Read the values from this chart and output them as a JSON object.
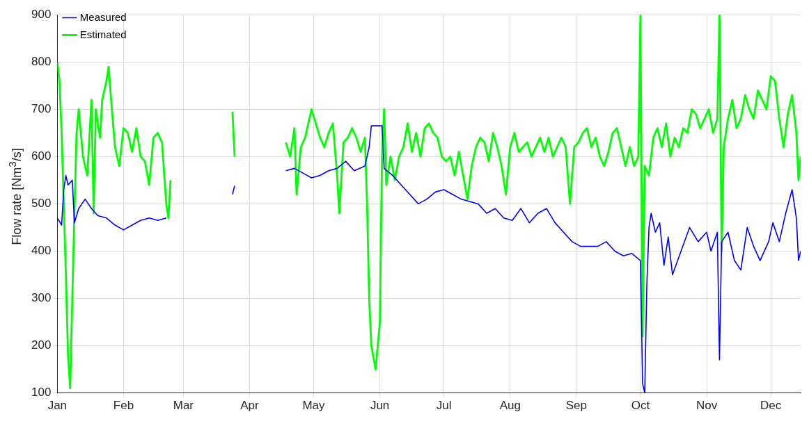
{
  "chart_data": {
    "type": "line",
    "ylabel": "Flow rate [Nm$^{3}$/s]",
    "ylim": [
      100,
      900
    ],
    "yticks": [
      100,
      200,
      300,
      400,
      500,
      600,
      700,
      800,
      900
    ],
    "xlim": [
      "--01-01",
      "--12-15"
    ],
    "xticks": [
      {
        "value": "--01-01",
        "label": "Jan"
      },
      {
        "value": "--02-01",
        "label": "Feb"
      },
      {
        "value": "--03-01",
        "label": "Mar"
      },
      {
        "value": "--04-01",
        "label": "Apr"
      },
      {
        "value": "--05-01",
        "label": "May"
      },
      {
        "value": "--06-01",
        "label": "Jun"
      },
      {
        "value": "--07-01",
        "label": "Jul"
      },
      {
        "value": "--08-01",
        "label": "Aug"
      },
      {
        "value": "--09-01",
        "label": "Sep"
      },
      {
        "value": "--10-01",
        "label": "Oct"
      },
      {
        "value": "--11-01",
        "label": "Nov"
      },
      {
        "value": "--12-01",
        "label": "Dec"
      }
    ],
    "grid": true,
    "legend": "top left",
    "line_style": "solid",
    "series": [
      {
        "name": "Measured",
        "color": "#0000ff",
        "x": [
          "--01-01",
          "--01-03",
          "--01-04",
          "--01-05",
          "--01-06",
          "--01-08",
          "--01-09",
          "--01-11",
          "--01-14",
          "--01-17",
          "--01-20",
          "--01-24",
          "--01-28",
          "--02-01",
          "--02-05",
          "--02-09",
          "--02-13",
          "--02-17",
          "--02-21",
          "--03-01",
          "--03-24",
          "--03-25",
          "--04-01",
          "--04-18",
          "--04-22",
          "--04-26",
          "--04-30",
          "--05-04",
          "--05-08",
          "--05-12",
          "--05-16",
          "--05-20",
          "--05-25",
          "--05-27",
          "--05-28",
          "--06-02",
          "--06-03",
          "--06-07",
          "--06-11",
          "--06-15",
          "--06-19",
          "--06-23",
          "--06-27",
          "--07-01",
          "--07-05",
          "--07-09",
          "--07-13",
          "--07-17",
          "--07-21",
          "--07-25",
          "--07-29",
          "--08-02",
          "--08-06",
          "--08-10",
          "--08-14",
          "--08-18",
          "--08-22",
          "--08-26",
          "--08-30",
          "--09-03",
          "--09-07",
          "--09-11",
          "--09-15",
          "--09-19",
          "--09-23",
          "--09-27",
          "--10-01",
          "--10-02",
          "--10-03",
          "--10-04",
          "--10-05",
          "--10-06",
          "--10-08",
          "--10-10",
          "--10-12",
          "--10-14",
          "--10-16",
          "--10-20",
          "--10-24",
          "--10-28",
          "--11-01",
          "--11-03",
          "--11-06",
          "--11-07",
          "--11-08",
          "--11-11",
          "--11-14",
          "--11-17",
          "--11-20",
          "--11-23",
          "--11-26",
          "--11-30",
          "--12-02",
          "--12-05",
          "--12-08",
          "--12-11",
          "--12-13",
          "--12-14",
          "--12-15"
        ],
        "values": [
          470,
          455,
          530,
          560,
          540,
          550,
          460,
          490,
          510,
          490,
          475,
          470,
          455,
          445,
          455,
          465,
          470,
          465,
          470,
          null,
          520,
          538,
          null,
          570,
          575,
          565,
          555,
          560,
          570,
          575,
          590,
          570,
          580,
          620,
          665,
          665,
          575,
          560,
          540,
          520,
          500,
          510,
          525,
          530,
          520,
          510,
          505,
          500,
          480,
          490,
          470,
          465,
          490,
          460,
          480,
          490,
          460,
          440,
          420,
          410,
          410,
          410,
          420,
          400,
          390,
          395,
          380,
          120,
          100,
          330,
          450,
          480,
          440,
          460,
          370,
          430,
          350,
          400,
          450,
          420,
          440,
          400,
          440,
          170,
          420,
          440,
          380,
          360,
          450,
          410,
          380,
          420,
          460,
          420,
          480,
          530,
          470,
          380,
          400
        ]
      },
      {
        "name": "Estimated",
        "color": "#00ff00",
        "x": [
          "--01-01",
          "--01-02",
          "--01-03",
          "--01-04",
          "--01-05",
          "--01-06",
          "--01-07",
          "--01-08",
          "--01-09",
          "--01-10",
          "--01-11",
          "--01-13",
          "--01-15",
          "--01-17",
          "--01-18",
          "--01-19",
          "--01-21",
          "--01-22",
          "--01-24",
          "--01-25",
          "--01-26",
          "--01-28",
          "--01-30",
          "--02-01",
          "--02-03",
          "--02-05",
          "--02-07",
          "--02-09",
          "--02-11",
          "--02-13",
          "--02-15",
          "--02-17",
          "--02-19",
          "--02-21",
          "--02-22",
          "--02-23",
          "--03-01",
          "--03-24",
          "--03-25",
          "--04-01",
          "--04-18",
          "--04-20",
          "--04-22",
          "--04-23",
          "--04-25",
          "--04-27",
          "--04-30",
          "--05-02",
          "--05-04",
          "--05-06",
          "--05-08",
          "--05-10",
          "--05-12",
          "--05-13",
          "--05-15",
          "--05-17",
          "--05-19",
          "--05-21",
          "--05-23",
          "--05-25",
          "--05-26",
          "--05-27",
          "--05-28",
          "--05-30",
          "--06-01",
          "--06-02",
          "--06-03",
          "--06-04",
          "--06-06",
          "--06-08",
          "--06-10",
          "--06-12",
          "--06-14",
          "--06-16",
          "--06-18",
          "--06-20",
          "--06-22",
          "--06-24",
          "--06-26",
          "--06-28",
          "--06-30",
          "--07-02",
          "--07-04",
          "--07-06",
          "--07-08",
          "--07-10",
          "--07-12",
          "--07-14",
          "--07-16",
          "--07-18",
          "--07-20",
          "--07-22",
          "--07-24",
          "--07-26",
          "--07-28",
          "--07-30",
          "--08-01",
          "--08-03",
          "--08-05",
          "--08-07",
          "--08-09",
          "--08-11",
          "--08-13",
          "--08-15",
          "--08-17",
          "--08-19",
          "--08-21",
          "--08-23",
          "--08-25",
          "--08-27",
          "--08-29",
          "--08-31",
          "--09-02",
          "--09-04",
          "--09-06",
          "--09-08",
          "--09-10",
          "--09-12",
          "--09-14",
          "--09-16",
          "--09-18",
          "--09-20",
          "--09-22",
          "--09-24",
          "--09-26",
          "--09-28",
          "--09-30",
          "--10-01",
          "--10-02",
          "--10-03",
          "--10-05",
          "--10-07",
          "--10-09",
          "--10-11",
          "--10-13",
          "--10-15",
          "--10-17",
          "--10-19",
          "--10-21",
          "--10-23",
          "--10-25",
          "--10-27",
          "--10-29",
          "--10-31",
          "--11-02",
          "--11-04",
          "--11-06",
          "--11-07",
          "--11-08",
          "--11-09",
          "--11-11",
          "--11-13",
          "--11-15",
          "--11-17",
          "--11-19",
          "--11-21",
          "--11-23",
          "--11-25",
          "--11-27",
          "--11-29",
          "--12-01",
          "--12-03",
          "--12-05",
          "--12-07",
          "--12-09",
          "--12-11",
          "--12-13",
          "--12-14",
          "--12-15"
        ],
        "values": [
          800,
          760,
          650,
          500,
          350,
          180,
          110,
          300,
          480,
          650,
          700,
          600,
          560,
          720,
          480,
          700,
          640,
          720,
          760,
          790,
          730,
          620,
          580,
          660,
          650,
          610,
          660,
          600,
          590,
          540,
          640,
          650,
          630,
          500,
          470,
          550,
          null,
          695,
          600,
          null,
          630,
          600,
          660,
          520,
          620,
          640,
          700,
          670,
          640,
          620,
          650,
          670,
          560,
          480,
          630,
          640,
          660,
          640,
          610,
          640,
          500,
          300,
          200,
          150,
          250,
          600,
          700,
          540,
          600,
          550,
          600,
          620,
          670,
          610,
          650,
          600,
          660,
          670,
          650,
          640,
          600,
          590,
          600,
          560,
          610,
          560,
          510,
          580,
          620,
          640,
          630,
          590,
          650,
          620,
          580,
          520,
          620,
          650,
          610,
          620,
          630,
          600,
          620,
          640,
          610,
          640,
          600,
          620,
          640,
          620,
          500,
          620,
          630,
          650,
          660,
          620,
          640,
          600,
          580,
          610,
          650,
          660,
          620,
          580,
          620,
          580,
          600,
          900,
          220,
          580,
          560,
          640,
          660,
          620,
          670,
          600,
          640,
          620,
          660,
          650,
          700,
          690,
          660,
          680,
          700,
          650,
          680,
          900,
          400,
          620,
          680,
          720,
          660,
          680,
          730,
          700,
          680,
          740,
          720,
          700,
          770,
          760,
          680,
          620,
          690,
          730,
          650,
          550,
          600
        ]
      }
    ]
  }
}
